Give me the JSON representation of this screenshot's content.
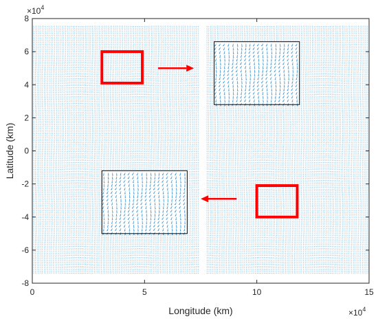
{
  "chart_data": {
    "type": "quiver",
    "xlabel": "Longitude (km)",
    "ylabel": "Latitude (km)",
    "x_exponent_label": "×10",
    "x_exponent_power": "4",
    "y_exponent_label": "×10",
    "y_exponent_power": "4",
    "xlim": [
      0,
      150000
    ],
    "ylim": [
      -80000,
      80000
    ],
    "xticks": [
      0,
      50000,
      100000,
      150000
    ],
    "xtick_labels": [
      "0",
      "5",
      "10",
      "15"
    ],
    "yticks": [
      -80000,
      -60000,
      -40000,
      -20000,
      0,
      20000,
      40000,
      60000,
      80000
    ],
    "ytick_labels": [
      "-8",
      "-6",
      "-4",
      "-2",
      "0",
      "2",
      "4",
      "6",
      "8"
    ],
    "field_color": "#4a9bd1",
    "field_extent": {
      "x": [
        500,
        149500
      ],
      "y": [
        -75000,
        75000
      ],
      "gap_x": [
        74000,
        77000
      ]
    },
    "highlight_boxes": [
      {
        "name": "source-upper-left",
        "x": [
          31000,
          49000
        ],
        "y": [
          41000,
          60000
        ],
        "color": "#ff0000"
      },
      {
        "name": "source-lower-right",
        "x": [
          100000,
          118000
        ],
        "y": [
          -40000,
          -21000
        ],
        "color": "#ff0000"
      }
    ],
    "zoom_boxes": [
      {
        "name": "zoom-upper-right",
        "x": [
          81000,
          119000
        ],
        "y": [
          28000,
          66000
        ],
        "color": "#000000"
      },
      {
        "name": "zoom-lower-left",
        "x": [
          31000,
          69000
        ],
        "y": [
          -50000,
          -12000
        ],
        "color": "#000000"
      }
    ],
    "arrows": [
      {
        "name": "arrow-right",
        "from": [
          56000,
          50000
        ],
        "to": [
          72000,
          50000
        ],
        "color": "#ff0000"
      },
      {
        "name": "arrow-left",
        "from": [
          91000,
          -29000
        ],
        "to": [
          75000,
          -29000
        ],
        "color": "#ff0000"
      }
    ]
  }
}
